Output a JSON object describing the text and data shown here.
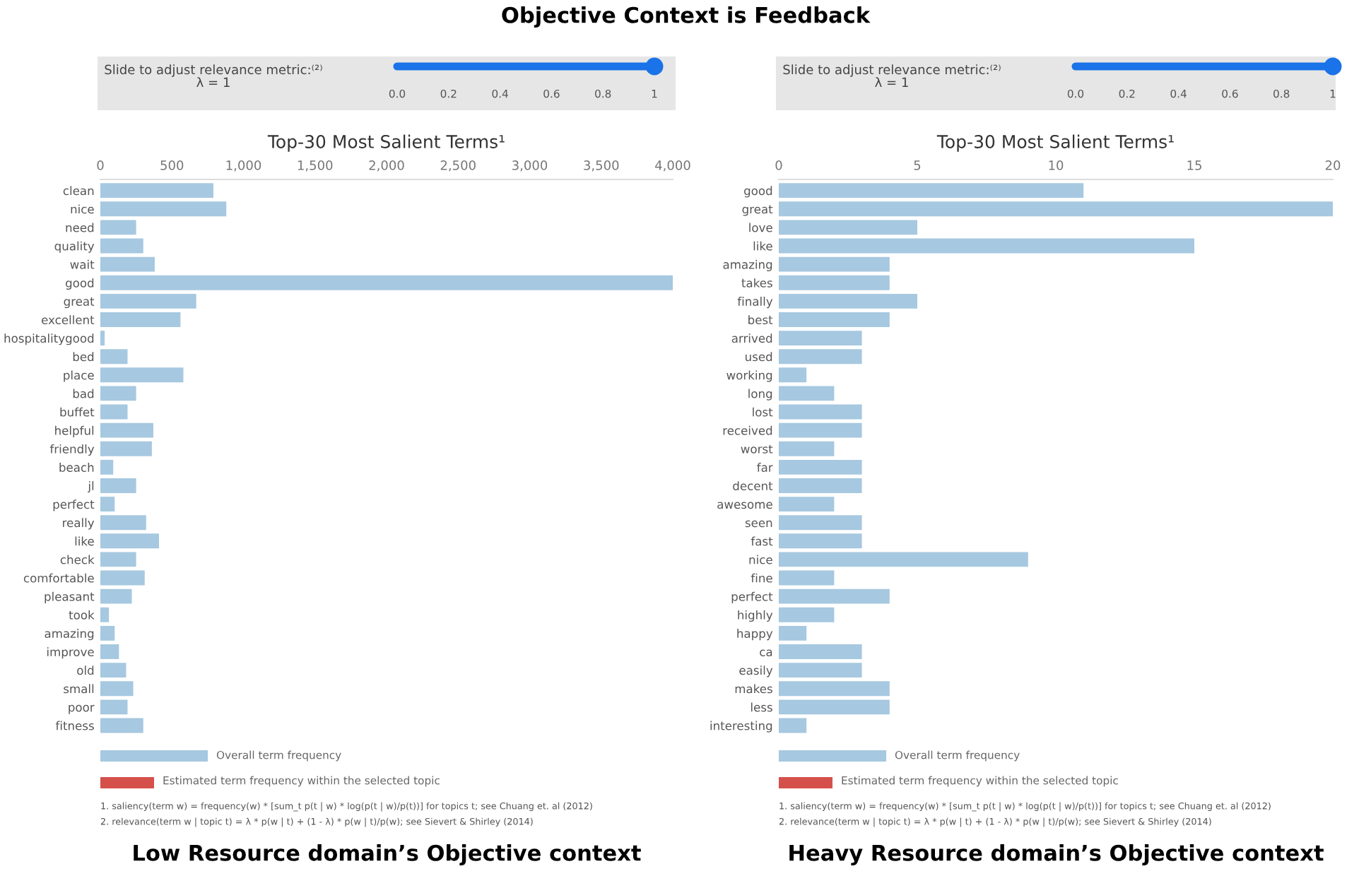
{
  "chart_data": [
    {
      "type": "bar",
      "orientation": "horizontal",
      "title": "Top-30 Most Salient Terms¹",
      "subtitle": "Objective Context is Feedback",
      "categories": [
        "clean",
        "nice",
        "need",
        "quality",
        "wait",
        "good",
        "great",
        "excellent",
        "hospitalitygood",
        "bed",
        "place",
        "bad",
        "buffet",
        "helpful",
        "friendly",
        "beach",
        "jl",
        "perfect",
        "really",
        "like",
        "check",
        "comfortable",
        "pleasant",
        "took",
        "amazing",
        "improve",
        "old",
        "small",
        "poor",
        "fitness"
      ],
      "series": [
        {
          "name": "Overall term frequency",
          "color": "#a6c8e0",
          "values": [
            790,
            880,
            250,
            300,
            380,
            4000,
            670,
            560,
            30,
            190,
            580,
            250,
            190,
            370,
            360,
            90,
            250,
            100,
            320,
            410,
            250,
            310,
            220,
            60,
            100,
            130,
            180,
            230,
            190,
            300
          ]
        }
      ],
      "xlim": [
        0,
        4000
      ],
      "xticks": [
        0,
        500,
        {
          "value": 1000,
          "label": "1,000"
        },
        {
          "value": 1500,
          "label": "1,500"
        },
        {
          "value": 2000,
          "label": "2,000"
        },
        {
          "value": 2500,
          "label": "2,500"
        },
        {
          "value": 3000,
          "label": "3,000"
        },
        {
          "value": 3500,
          "label": "3,500"
        },
        {
          "value": 4000,
          "label": "4,000"
        }
      ],
      "legend": "bottom",
      "annotations": [
        "Slide to adjust relevance metric:⁽²⁾",
        "λ = 1",
        "0.0",
        "0.2",
        "0.4",
        "0.6",
        "0.8",
        "1",
        "Estimated term frequency within the selected topic",
        "1. saliency(term w) = frequency(w) * [sum_t p(t | w) * log(p(t | w)/p(t))] for topics t; see Chuang et. al (2012)",
        "2. relevance(term w | topic t) = λ * p(w | t) + (1 - λ) * p(w | t)/p(w); see Sievert & Shirley (2014)",
        "Low Resource domain’s Objective context"
      ]
    },
    {
      "type": "bar",
      "orientation": "horizontal",
      "title": "Top-30 Most Salient Terms¹",
      "categories": [
        "good",
        "great",
        "love",
        "like",
        "amazing",
        "takes",
        "finally",
        "best",
        "arrived",
        "used",
        "working",
        "long",
        "lost",
        "received",
        "worst",
        "far",
        "decent",
        "awesome",
        "seen",
        "fast",
        "nice",
        "fine",
        "perfect",
        "highly",
        "happy",
        "ca",
        "easily",
        "makes",
        "less",
        "interesting"
      ],
      "series": [
        {
          "name": "Overall term frequency",
          "color": "#a6c8e0",
          "values": [
            11,
            20,
            5,
            15,
            4,
            4,
            5,
            4,
            3,
            3,
            1,
            2,
            3,
            3,
            2,
            3,
            3,
            2,
            3,
            3,
            9,
            2,
            4,
            2,
            1,
            3,
            3,
            4,
            4,
            1
          ]
        }
      ],
      "xlim": [
        0,
        20
      ],
      "xticks": [
        0,
        5,
        10,
        15,
        20
      ],
      "legend": "bottom",
      "annotations": [
        "Slide to adjust relevance metric:⁽²⁾",
        "λ = 1",
        "0.0",
        "0.2",
        "0.4",
        "0.6",
        "0.8",
        "1",
        "Estimated term frequency within the selected topic",
        "1. saliency(term w) = frequency(w) * [sum_t p(t | w) * log(p(t | w)/p(t))] for topics t; see Chuang et. al (2012)",
        "2. relevance(term w | topic t) = λ * p(w | t) + (1 - λ) * p(w | t)/p(w); see Sievert & Shirley (2014)",
        "Heavy Resource domain’s Objective context"
      ]
    }
  ]
}
